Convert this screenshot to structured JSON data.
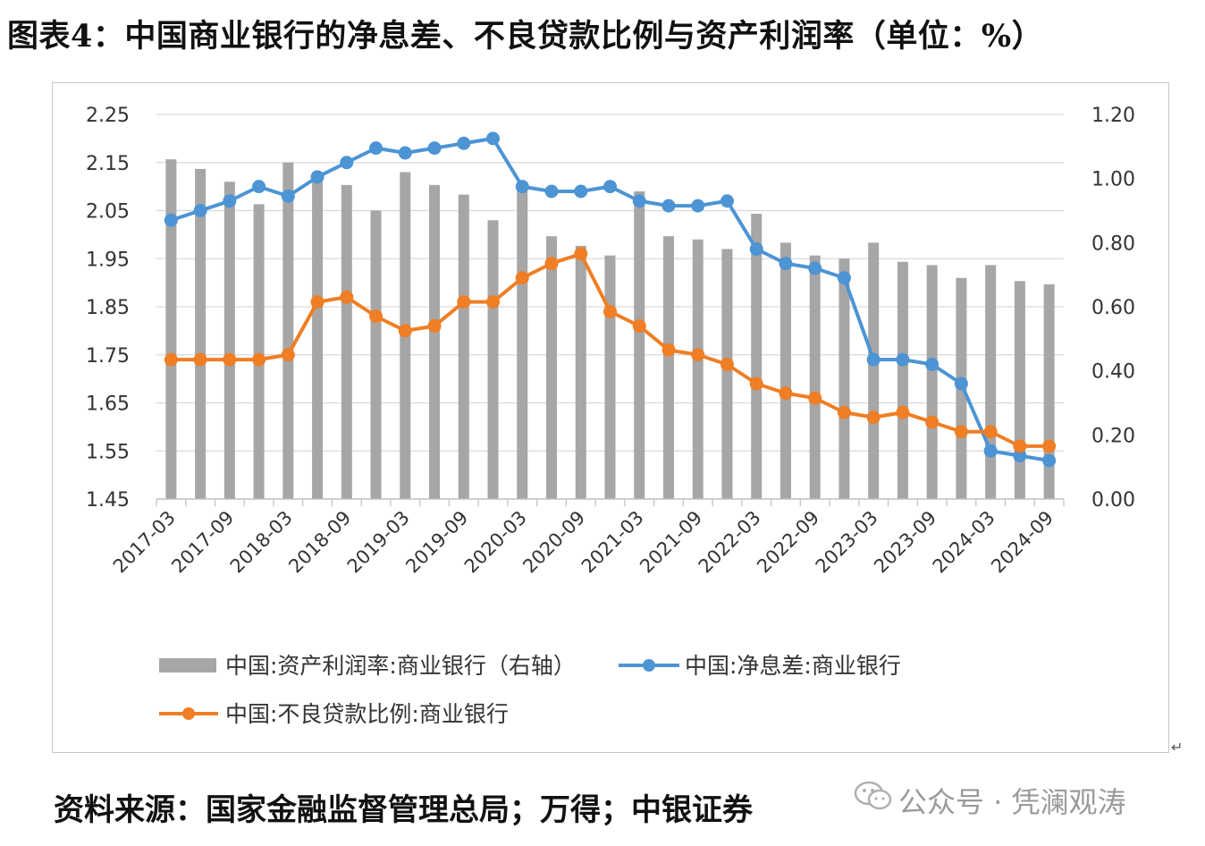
{
  "figure_title": "图表4：中国商业银行的净息差、不良贷款比例与资产利润率（单位：%）",
  "source_text": "资料来源：国家金融监督管理总局；万得；中银证券",
  "watermark": {
    "text": "公众号 · 凭澜观涛",
    "icon": "wechat-icon"
  },
  "colors": {
    "bars": "#a6a6a6",
    "nim": "#4c94d4",
    "npl": "#ef7e24",
    "grid": "#d9d9d9"
  },
  "chart_data": {
    "type": "bar+line",
    "x": [
      "2017-03",
      "2017-06",
      "2017-09",
      "2017-12",
      "2018-03",
      "2018-06",
      "2018-09",
      "2018-12",
      "2019-03",
      "2019-06",
      "2019-09",
      "2019-12",
      "2020-03",
      "2020-06",
      "2020-09",
      "2020-12",
      "2021-03",
      "2021-06",
      "2021-09",
      "2021-12",
      "2022-03",
      "2022-06",
      "2022-09",
      "2022-12",
      "2023-03",
      "2023-06",
      "2023-09",
      "2023-12",
      "2024-03",
      "2024-06",
      "2024-09"
    ],
    "xtick_labels": [
      "2017-03",
      "2017-09",
      "2018-03",
      "2018-09",
      "2019-03",
      "2019-09",
      "2020-03",
      "2020-09",
      "2021-03",
      "2021-09",
      "2022-03",
      "2022-09",
      "2023-03",
      "2023-09",
      "2024-03",
      "2024-09"
    ],
    "y_left": {
      "min": 1.45,
      "max": 2.25,
      "ticks": [
        "2.25",
        "2.15",
        "2.05",
        "1.95",
        "1.85",
        "1.75",
        "1.65",
        "1.55",
        "1.45"
      ]
    },
    "y_right": {
      "min": 0.0,
      "max": 1.2,
      "ticks": [
        "1.20",
        "1.00",
        "0.80",
        "0.60",
        "0.40",
        "0.20",
        "0.00"
      ]
    },
    "grid": true,
    "legend_position": "bottom",
    "series": [
      {
        "name": "中国:资产利润率:商业银行（右轴）",
        "kind": "bar",
        "axis": "right",
        "values": [
          1.06,
          1.03,
          0.99,
          0.92,
          1.05,
          1.02,
          0.98,
          0.9,
          1.02,
          0.98,
          0.95,
          0.87,
          0.97,
          0.82,
          0.79,
          0.76,
          0.96,
          0.82,
          0.81,
          0.78,
          0.89,
          0.8,
          0.76,
          0.75,
          0.8,
          0.74,
          0.73,
          0.69,
          0.73,
          0.68,
          0.67
        ]
      },
      {
        "name": "中国:净息差:商业银行",
        "kind": "line",
        "axis": "left",
        "values": [
          2.03,
          2.05,
          2.07,
          2.1,
          2.08,
          2.12,
          2.15,
          2.18,
          2.17,
          2.18,
          2.19,
          2.2,
          2.1,
          2.09,
          2.09,
          2.1,
          2.07,
          2.06,
          2.06,
          2.07,
          1.97,
          1.94,
          1.93,
          1.91,
          1.74,
          1.74,
          1.73,
          1.69,
          1.55,
          1.54,
          1.53
        ]
      },
      {
        "name": "中国:不良贷款比例:商业银行",
        "kind": "line",
        "axis": "left",
        "values": [
          1.74,
          1.74,
          1.74,
          1.74,
          1.75,
          1.86,
          1.87,
          1.83,
          1.8,
          1.81,
          1.86,
          1.86,
          1.91,
          1.94,
          1.96,
          1.84,
          1.81,
          1.76,
          1.75,
          1.73,
          1.69,
          1.67,
          1.66,
          1.63,
          1.62,
          1.63,
          1.61,
          1.59,
          1.59,
          1.56,
          1.56
        ]
      }
    ]
  }
}
